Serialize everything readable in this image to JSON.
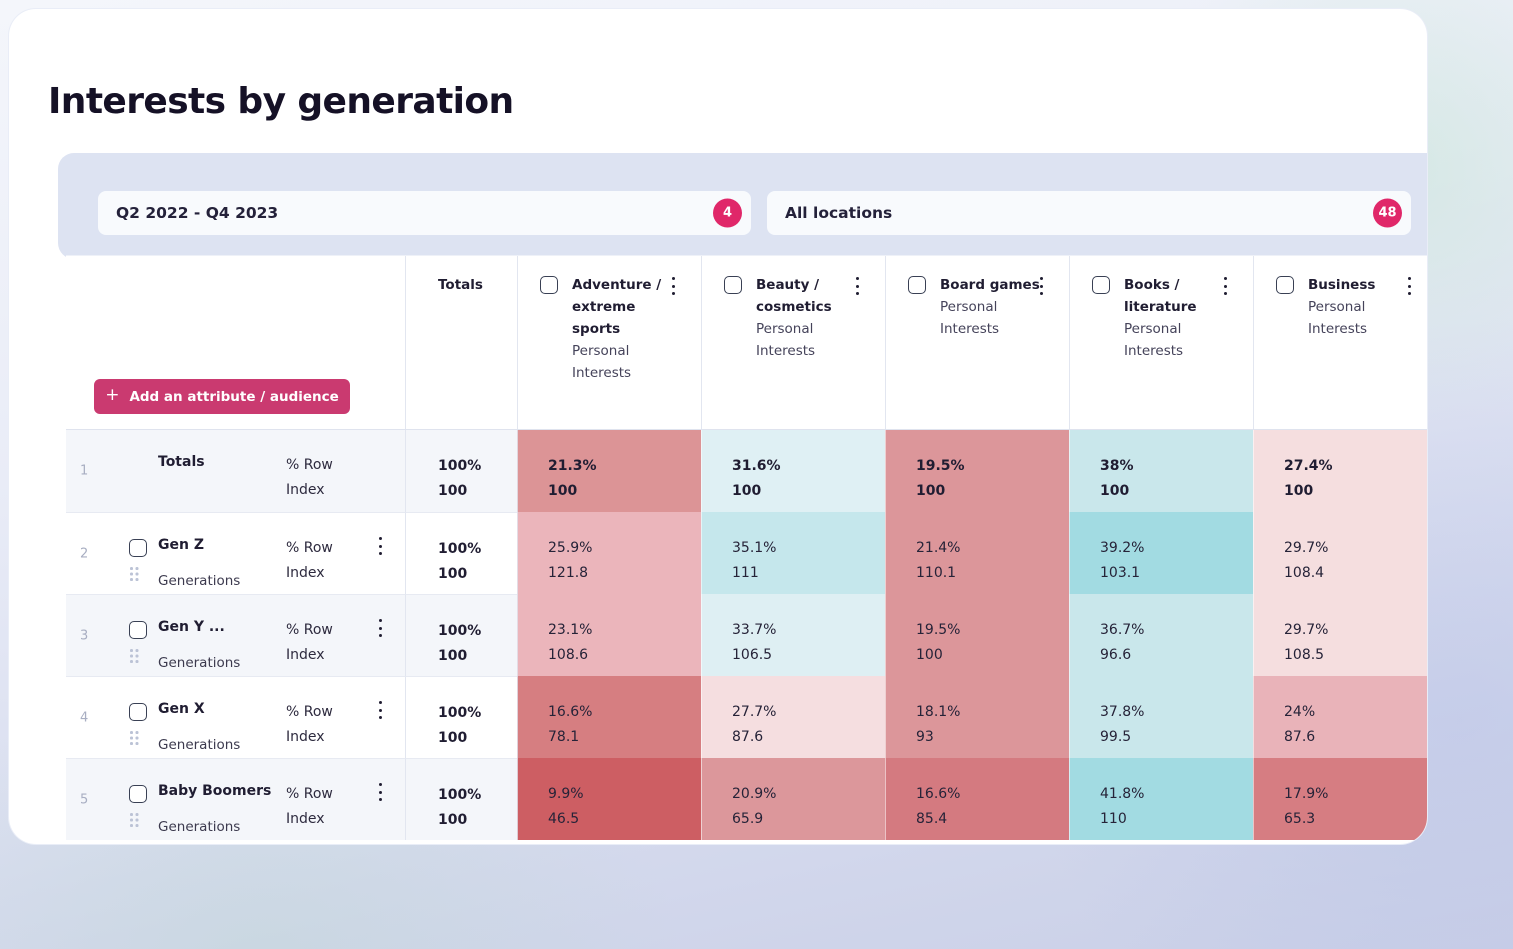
{
  "page": {
    "title": "Interests by generation"
  },
  "filters": [
    {
      "label": "Q2 2022 - Q4 2023",
      "count": "4"
    },
    {
      "label": "All locations",
      "count": "48"
    }
  ],
  "add_button": {
    "plus": "+",
    "label": "Add an attribute / audience"
  },
  "colors": {
    "accent_button": "#ca3a70",
    "badge": "#e02769",
    "filterbar_bg": "#dde3f2",
    "stripe_bg": "#f4f6fa"
  },
  "table": {
    "totals_header": "Totals",
    "row_metric_labels": [
      "% Row",
      "Index"
    ],
    "columns": [
      {
        "title_lines": [
          "Adventure /",
          "extreme sports"
        ],
        "subtitle_lines": [
          "Personal",
          "Interests"
        ]
      },
      {
        "title_lines": [
          "Beauty /",
          "cosmetics"
        ],
        "subtitle_lines": [
          "Personal",
          "Interests"
        ]
      },
      {
        "title_lines": [
          "Board games"
        ],
        "subtitle_lines": [
          "Personal",
          "Interests"
        ]
      },
      {
        "title_lines": [
          "Books /",
          "literature"
        ],
        "subtitle_lines": [
          "Personal",
          "Interests"
        ]
      },
      {
        "title_lines": [
          "Business"
        ],
        "subtitle_lines": [
          "Personal",
          "Interests"
        ]
      }
    ],
    "rows": [
      {
        "num": "1",
        "name": "Totals",
        "group": "",
        "totals": {
          "pct": "100%",
          "index": "100"
        },
        "cells": [
          {
            "pct": "21.3%",
            "index": "100",
            "bg": "#dc9496"
          },
          {
            "pct": "31.6%",
            "index": "100",
            "bg": "#dff0f4"
          },
          {
            "pct": "19.5%",
            "index": "100",
            "bg": "#dc969a"
          },
          {
            "pct": "38%",
            "index": "100",
            "bg": "#c9e7eb"
          },
          {
            "pct": "27.4%",
            "index": "100",
            "bg": "#f5dedf"
          }
        ]
      },
      {
        "num": "2",
        "name": "Gen Z",
        "group": "Generations",
        "totals": {
          "pct": "100%",
          "index": "100"
        },
        "cells": [
          {
            "pct": "25.9%",
            "index": "121.8",
            "bg": "#ebb5bb"
          },
          {
            "pct": "35.1%",
            "index": "111",
            "bg": "#c5e7ec"
          },
          {
            "pct": "21.4%",
            "index": "110.1",
            "bg": "#dc969a"
          },
          {
            "pct": "39.2%",
            "index": "103.1",
            "bg": "#a2dbe2"
          },
          {
            "pct": "29.7%",
            "index": "108.4",
            "bg": "#f5dedf"
          }
        ]
      },
      {
        "num": "3",
        "name": "Gen Y ...",
        "group": "Generations",
        "totals": {
          "pct": "100%",
          "index": "100"
        },
        "cells": [
          {
            "pct": "23.1%",
            "index": "108.6",
            "bg": "#ebb5bb"
          },
          {
            "pct": "33.7%",
            "index": "106.5",
            "bg": "#deeff3"
          },
          {
            "pct": "19.5%",
            "index": "100",
            "bg": "#dc969a"
          },
          {
            "pct": "36.7%",
            "index": "96.6",
            "bg": "#c9e7eb"
          },
          {
            "pct": "29.7%",
            "index": "108.5",
            "bg": "#f5dedf"
          }
        ]
      },
      {
        "num": "4",
        "name": "Gen X",
        "group": "Generations",
        "totals": {
          "pct": "100%",
          "index": "100"
        },
        "cells": [
          {
            "pct": "16.6%",
            "index": "78.1",
            "bg": "#d67e81"
          },
          {
            "pct": "27.7%",
            "index": "87.6",
            "bg": "#f5dee0"
          },
          {
            "pct": "18.1%",
            "index": "93",
            "bg": "#dc969a"
          },
          {
            "pct": "37.8%",
            "index": "99.5",
            "bg": "#c9e7eb"
          },
          {
            "pct": "24%",
            "index": "87.6",
            "bg": "#e9b3b9"
          }
        ]
      },
      {
        "num": "5",
        "name": "Baby Boomers",
        "group": "Generations",
        "totals": {
          "pct": "100%",
          "index": "100"
        },
        "cells": [
          {
            "pct": "9.9%",
            "index": "46.5",
            "bg": "#cd5e63"
          },
          {
            "pct": "20.9%",
            "index": "65.9",
            "bg": "#dc979b"
          },
          {
            "pct": "16.6%",
            "index": "85.4",
            "bg": "#d47a80"
          },
          {
            "pct": "41.8%",
            "index": "110",
            "bg": "#a2dbe2"
          },
          {
            "pct": "17.9%",
            "index": "65.3",
            "bg": "#d67d82"
          }
        ]
      }
    ]
  }
}
